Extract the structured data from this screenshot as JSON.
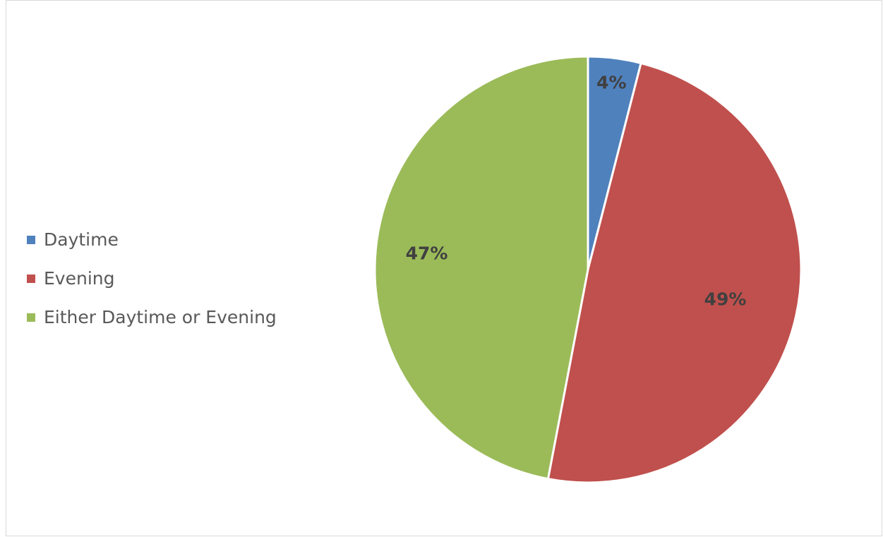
{
  "chart_data": {
    "type": "pie",
    "title": "",
    "categories": [
      "Daytime",
      "Evening",
      "Either Daytime or Evening"
    ],
    "values": [
      4,
      49,
      47
    ],
    "labels": [
      "4%",
      "49%",
      "47%"
    ],
    "colors": [
      "#4f81bd",
      "#c0504d",
      "#9bbb59"
    ],
    "legend_position": "left"
  }
}
